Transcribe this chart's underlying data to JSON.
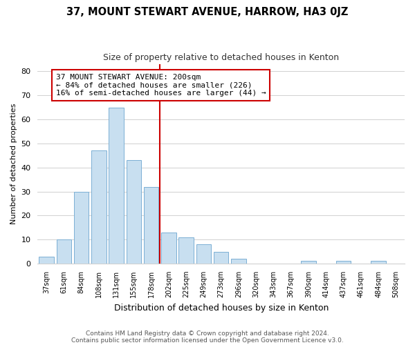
{
  "title": "37, MOUNT STEWART AVENUE, HARROW, HA3 0JZ",
  "subtitle": "Size of property relative to detached houses in Kenton",
  "xlabel": "Distribution of detached houses by size in Kenton",
  "ylabel": "Number of detached properties",
  "bar_labels": [
    "37sqm",
    "61sqm",
    "84sqm",
    "108sqm",
    "131sqm",
    "155sqm",
    "178sqm",
    "202sqm",
    "225sqm",
    "249sqm",
    "273sqm",
    "296sqm",
    "320sqm",
    "343sqm",
    "367sqm",
    "390sqm",
    "414sqm",
    "437sqm",
    "461sqm",
    "484sqm",
    "508sqm"
  ],
  "bar_heights": [
    3,
    10,
    30,
    47,
    65,
    43,
    32,
    13,
    11,
    8,
    5,
    2,
    0,
    0,
    0,
    1,
    0,
    1,
    0,
    1,
    0
  ],
  "bar_color": "#c8dff0",
  "bar_edge_color": "#7bafd4",
  "vline_index": 7,
  "vline_color": "#cc0000",
  "annotation_text": "37 MOUNT STEWART AVENUE: 200sqm\n← 84% of detached houses are smaller (226)\n16% of semi-detached houses are larger (44) →",
  "annotation_box_edge_color": "#cc0000",
  "annotation_fontsize": 8.0,
  "ylim": [
    0,
    83
  ],
  "yticks": [
    0,
    10,
    20,
    30,
    40,
    50,
    60,
    70,
    80
  ],
  "footer_line1": "Contains HM Land Registry data © Crown copyright and database right 2024.",
  "footer_line2": "Contains public sector information licensed under the Open Government Licence v3.0.",
  "background_color": "#ffffff",
  "grid_color": "#d0d0d0",
  "title_fontsize": 10.5,
  "subtitle_fontsize": 9,
  "xlabel_fontsize": 9,
  "ylabel_fontsize": 8
}
